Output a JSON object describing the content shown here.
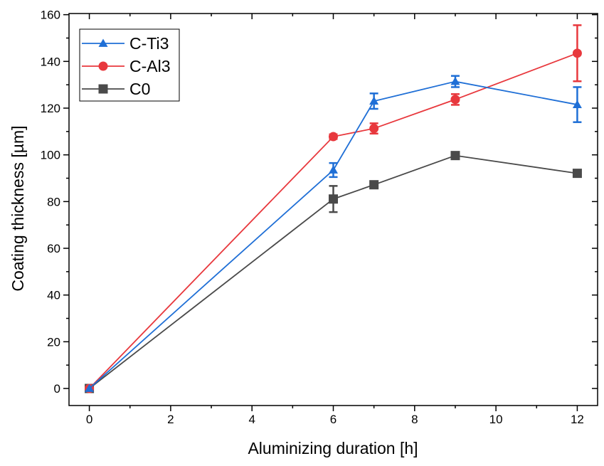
{
  "chart_data": {
    "type": "line",
    "title": "",
    "xlabel": "Aluminizing duration [h]",
    "ylabel": "Coating thickness [µm]",
    "xlim": [
      -0.5,
      12.5
    ],
    "ylim": [
      -7.3,
      160.5
    ],
    "xticks": [
      0,
      2,
      4,
      6,
      8,
      10,
      12
    ],
    "yticks": [
      0,
      20,
      40,
      60,
      80,
      100,
      120,
      140,
      160
    ],
    "grid": false,
    "legend_position": "top-left",
    "series": [
      {
        "name": "C-Ti3",
        "color": "#1f6fd6",
        "marker": "triangle",
        "x": [
          0,
          6,
          7,
          9,
          12
        ],
        "y": [
          0,
          93.5,
          123.0,
          131.4,
          121.5
        ],
        "error": [
          0,
          3.0,
          3.3,
          2.4,
          7.5
        ]
      },
      {
        "name": "C-Al3",
        "color": "#e8383d",
        "marker": "circle",
        "x": [
          0,
          6,
          7,
          9,
          12
        ],
        "y": [
          0,
          107.8,
          111.3,
          123.7,
          143.5
        ],
        "error": [
          0,
          1.0,
          2.2,
          2.3,
          12.0
        ]
      },
      {
        "name": "C0",
        "color": "#4a4a4a",
        "marker": "square",
        "x": [
          0,
          6,
          7,
          9,
          12
        ],
        "y": [
          0,
          81.1,
          87.2,
          99.7,
          92.1
        ],
        "error": [
          0,
          5.6,
          0.8,
          0.8,
          0.8
        ]
      }
    ]
  }
}
